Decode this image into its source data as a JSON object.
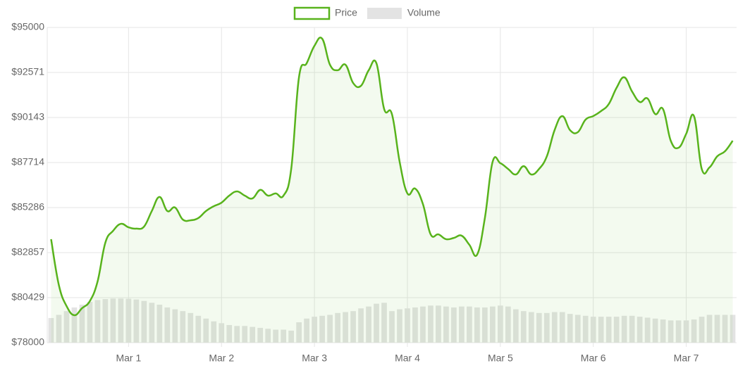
{
  "chart_data": {
    "type": "line",
    "categories": [
      null,
      null,
      null,
      null,
      null,
      null,
      null,
      null,
      null,
      null,
      "Mar 1",
      null,
      null,
      null,
      null,
      null,
      null,
      null,
      null,
      null,
      null,
      null,
      "Mar 2",
      null,
      null,
      null,
      null,
      null,
      null,
      null,
      null,
      null,
      null,
      null,
      "Mar 3",
      null,
      null,
      null,
      null,
      null,
      null,
      null,
      null,
      null,
      null,
      null,
      "Mar 4",
      null,
      null,
      null,
      null,
      null,
      null,
      null,
      null,
      null,
      null,
      null,
      "Mar 5",
      null,
      null,
      null,
      null,
      null,
      null,
      null,
      null,
      null,
      null,
      null,
      "Mar 6",
      null,
      null,
      null,
      null,
      null,
      null,
      null,
      null,
      null,
      null,
      null,
      "Mar 7",
      null,
      null,
      null,
      null,
      null,
      null
    ],
    "series": [
      {
        "name": "Price",
        "type": "line",
        "color": "#58b31c",
        "fill": "rgba(88,179,28,0.07)",
        "values": [
          83580,
          81110,
          79970,
          79480,
          79860,
          80240,
          81300,
          83390,
          84030,
          84410,
          84220,
          84150,
          84260,
          85100,
          85860,
          85100,
          85290,
          84640,
          84600,
          84720,
          85100,
          85360,
          85550,
          85930,
          86160,
          85930,
          85780,
          86240,
          85930,
          86050,
          85930,
          87370,
          92310,
          93070,
          94010,
          94390,
          92990,
          92690,
          92990,
          92000,
          91850,
          92690,
          93070,
          90600,
          90330,
          87750,
          86050,
          86310,
          85480,
          83840,
          83840,
          83580,
          83650,
          83770,
          83280,
          82750,
          84720,
          87750,
          87680,
          87370,
          87070,
          87520,
          87070,
          87370,
          88050,
          89460,
          90220,
          89460,
          89350,
          90030,
          90220,
          90490,
          90870,
          91740,
          92310,
          91550,
          90980,
          91170,
          90330,
          90600,
          88890,
          88510,
          89270,
          90220,
          87370,
          87450,
          88050,
          88320,
          88890
        ]
      },
      {
        "name": "Volume",
        "type": "bar",
        "color": "#e3e3e3",
        "values": [
          79330,
          79500,
          79700,
          79900,
          80050,
          80200,
          80300,
          80350,
          80380,
          80380,
          80370,
          80330,
          80250,
          80150,
          80050,
          79900,
          79800,
          79700,
          79600,
          79450,
          79300,
          79150,
          79050,
          78950,
          78900,
          78900,
          78850,
          78800,
          78750,
          78700,
          78700,
          78650,
          79100,
          79300,
          79400,
          79450,
          79500,
          79600,
          79650,
          79700,
          79850,
          79950,
          80100,
          80150,
          79700,
          79800,
          79850,
          79900,
          79950,
          80000,
          80000,
          79950,
          79900,
          79950,
          79950,
          79900,
          79900,
          79950,
          80000,
          79950,
          79800,
          79700,
          79650,
          79600,
          79600,
          79650,
          79650,
          79550,
          79500,
          79450,
          79400,
          79400,
          79400,
          79400,
          79450,
          79450,
          79400,
          79350,
          79300,
          79250,
          79200,
          79200,
          79200,
          79250,
          79400,
          79500,
          79500,
          79500,
          79500
        ]
      }
    ],
    "ylim": [
      78000,
      95000
    ],
    "yticks": [
      {
        "value": 78000,
        "label": "$78000"
      },
      {
        "value": 80429,
        "label": "$80429"
      },
      {
        "value": 82857,
        "label": "$82857"
      },
      {
        "value": 85286,
        "label": "$85286"
      },
      {
        "value": 87714,
        "label": "$87714"
      },
      {
        "value": 90143,
        "label": "$90143"
      },
      {
        "value": 92571,
        "label": "$92571"
      },
      {
        "value": 95000,
        "label": "$95000"
      }
    ],
    "grid": true,
    "legend": "top"
  }
}
